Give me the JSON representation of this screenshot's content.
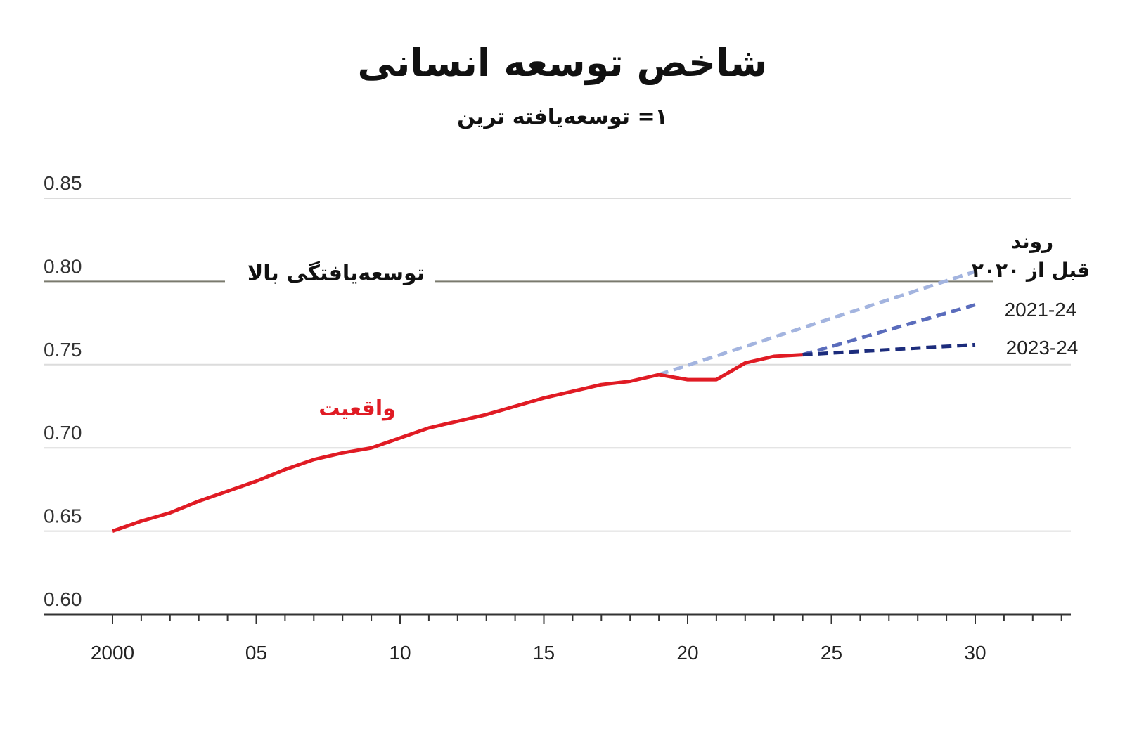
{
  "chart_data": {
    "type": "line",
    "title": "شاخص توسعه انسانی",
    "subtitle": "۱= توسعه‌یافته ترین",
    "ylim": [
      0.6,
      0.85
    ],
    "yticks": [
      0.6,
      0.65,
      0.7,
      0.75,
      0.8,
      0.85
    ],
    "ytick_labels": [
      "0.60",
      "0.65",
      "0.70",
      "0.75",
      "0.80",
      "0.85"
    ],
    "xlim": [
      2000,
      2033
    ],
    "xticks": [
      2000,
      2005,
      2010,
      2015,
      2020,
      2025,
      2030
    ],
    "xtick_labels": [
      "2000",
      "05",
      "10",
      "15",
      "20",
      "25",
      "30"
    ],
    "grid": true,
    "reference_line": {
      "value": 0.8,
      "label": "توسعه‌یافتگی بالا"
    },
    "series": [
      {
        "name": "واقعیت",
        "style": "solid",
        "color": "#e01b24",
        "x": [
          2000,
          2001,
          2002,
          2003,
          2004,
          2005,
          2006,
          2007,
          2008,
          2009,
          2010,
          2011,
          2012,
          2013,
          2014,
          2015,
          2016,
          2017,
          2018,
          2019,
          2020,
          2021,
          2022,
          2023,
          2024
        ],
        "y": [
          0.65,
          0.656,
          0.661,
          0.668,
          0.674,
          0.68,
          0.687,
          0.693,
          0.697,
          0.7,
          0.706,
          0.712,
          0.716,
          0.72,
          0.725,
          0.73,
          0.734,
          0.738,
          0.74,
          0.744,
          0.741,
          0.741,
          0.751,
          0.755,
          0.756
        ]
      },
      {
        "name": "روند قبل از ۲۰۲۰",
        "label_lines": [
          "روند",
          "قبل از ۲۰۲۰"
        ],
        "style": "dashed",
        "color": "#a3b4df",
        "x": [
          2019,
          2030
        ],
        "y": [
          0.744,
          0.806
        ]
      },
      {
        "name": "2021-24",
        "style": "dashed",
        "color": "#5a6cbc",
        "x": [
          2024,
          2030
        ],
        "y": [
          0.756,
          0.786
        ]
      },
      {
        "name": "2023-24",
        "style": "dashed",
        "color": "#1c2c7c",
        "x": [
          2024,
          2030
        ],
        "y": [
          0.756,
          0.762
        ]
      }
    ]
  }
}
